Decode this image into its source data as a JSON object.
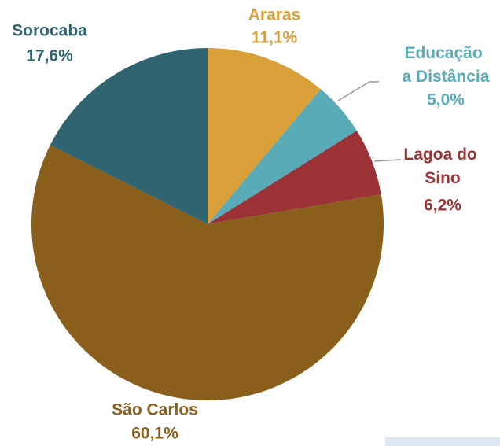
{
  "chart_data": {
    "type": "pie",
    "categories": [
      "Araras",
      "Educação a Distância",
      "Lagoa do Sino",
      "São Carlos",
      "Sorocaba"
    ],
    "values": [
      11.1,
      5.0,
      6.2,
      60.1,
      17.6
    ],
    "value_labels": [
      "11,1%",
      "5,0%",
      "6,2%",
      "60,1%",
      "17,6%"
    ],
    "colors": [
      "#d9a03a",
      "#5aabb8",
      "#9b3236",
      "#8a5f1c",
      "#2f6470"
    ]
  }
}
